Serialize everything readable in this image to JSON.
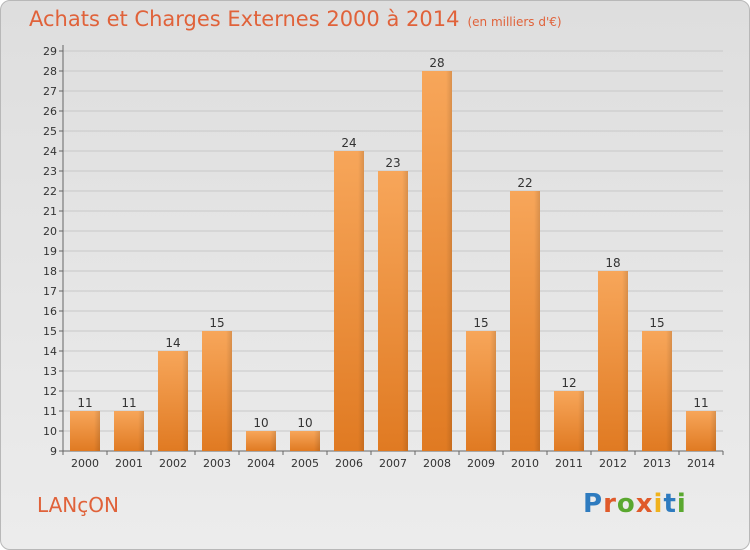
{
  "header": {
    "title": "Achats et Charges Externes 2000 à 2014",
    "subtitle": "(en milliers d'€)"
  },
  "footer": {
    "city": "LANçON",
    "logo": "Proxiti"
  },
  "colors": {
    "bar_top": "#f7a65a",
    "bar_bottom": "#e07a22",
    "title": "#e0623a",
    "grid": "#c8c8c8"
  },
  "chart_data": {
    "type": "bar",
    "title": "Achats et Charges Externes 2000 à 2014",
    "subtitle": "(en milliers d'€)",
    "categories": [
      "2000",
      "2001",
      "2002",
      "2003",
      "2004",
      "2005",
      "2006",
      "2007",
      "2008",
      "2009",
      "2010",
      "2011",
      "2012",
      "2013",
      "2014"
    ],
    "values": [
      11,
      11,
      14,
      15,
      10,
      10,
      24,
      23,
      28,
      15,
      22,
      12,
      18,
      15,
      11
    ],
    "ylim": [
      9,
      29
    ],
    "yticks": [
      9,
      10,
      11,
      12,
      13,
      14,
      15,
      16,
      17,
      18,
      19,
      20,
      21,
      22,
      23,
      24,
      25,
      26,
      27,
      28,
      29
    ],
    "grid": "horizontal",
    "xlabel": "",
    "ylabel": ""
  }
}
